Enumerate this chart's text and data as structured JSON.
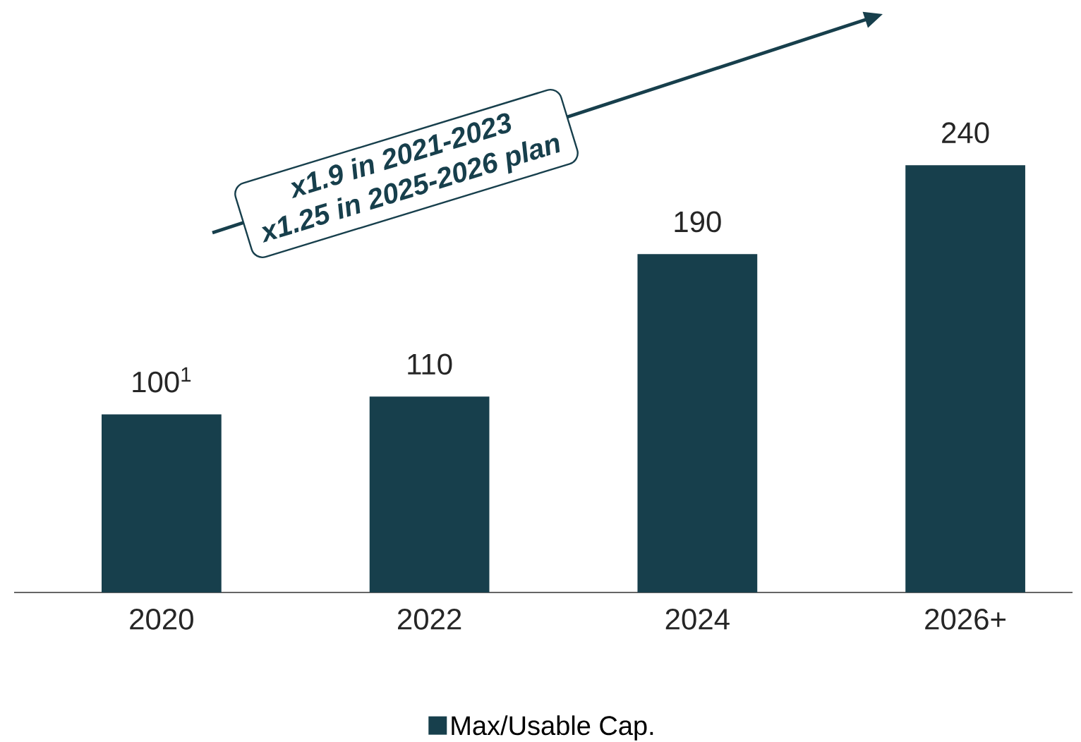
{
  "chart_data": {
    "type": "bar",
    "categories": [
      "2020",
      "2022",
      "2024",
      "2026+"
    ],
    "series": [
      {
        "name": "Max/Usable Cap.",
        "color": "#173f4c",
        "values": [
          100,
          110,
          190,
          240
        ],
        "value_labels": [
          "100$^{1}$",
          "110",
          "190",
          "240"
        ]
      }
    ],
    "annotations": [
      "x1.9 in 2021-2023",
      "x1.25 in 2025-2026 plan"
    ],
    "legend": "bottom"
  }
}
